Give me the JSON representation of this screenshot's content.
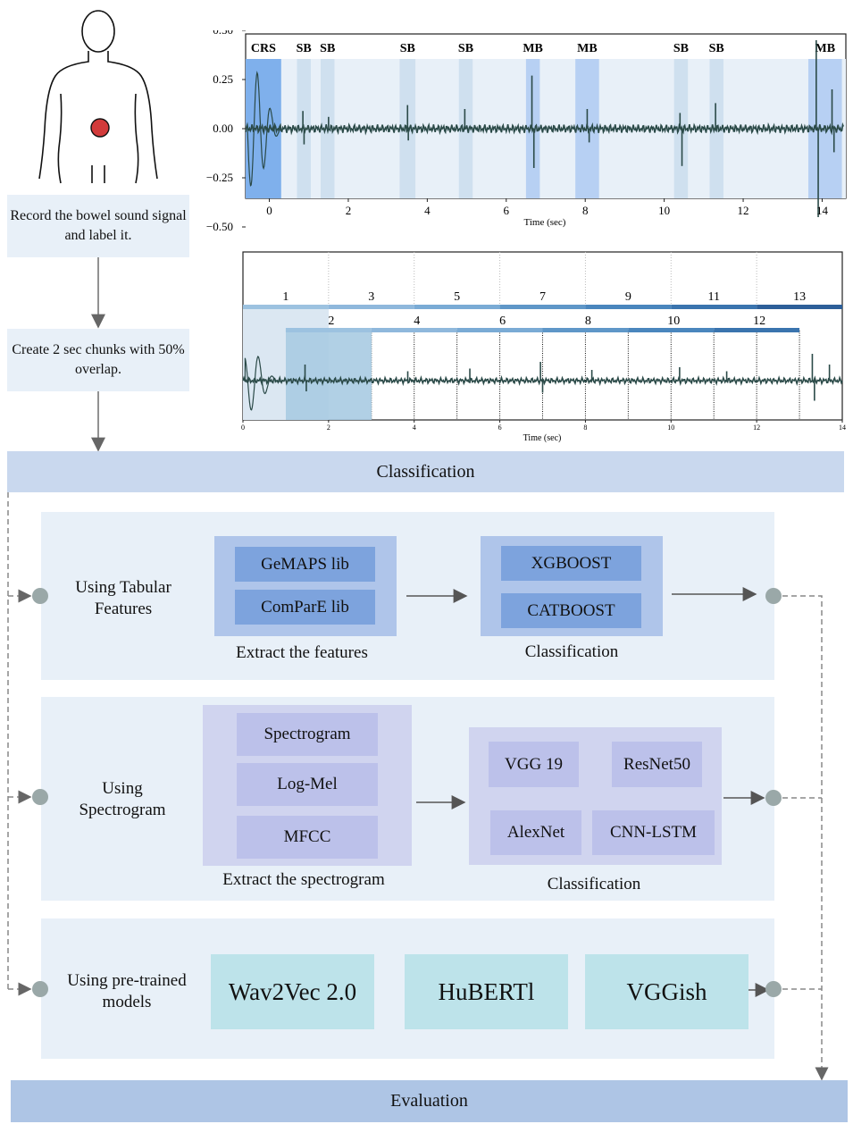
{
  "step_record": "Record the bowel sound signal and label it.",
  "step_chunks": "Create 2 sec chunks with 50% overlap.",
  "classification_header": "Classification",
  "evaluation_footer": "Evaluation",
  "plot1": {
    "xlabel": "Time (sec)",
    "yticks": [
      "0.50",
      "0.25",
      "0.00",
      "−0.25",
      "−0.50"
    ],
    "xticks": [
      "0",
      "2",
      "4",
      "6",
      "8",
      "10",
      "12",
      "14"
    ],
    "events": [
      {
        "label": "CRS",
        "start": -0.6,
        "end": 0.3
      },
      {
        "label": "SB",
        "start": 0.7,
        "end": 1.05
      },
      {
        "label": "SB",
        "start": 1.3,
        "end": 1.65
      },
      {
        "label": "SB",
        "start": 3.3,
        "end": 3.7
      },
      {
        "label": "SB",
        "start": 4.8,
        "end": 5.15
      },
      {
        "label": "MB",
        "start": 6.5,
        "end": 6.85
      },
      {
        "label": "MB",
        "start": 7.75,
        "end": 8.35
      },
      {
        "label": "SB",
        "start": 10.25,
        "end": 10.6
      },
      {
        "label": "SB",
        "start": 11.15,
        "end": 11.5
      },
      {
        "label": "MB",
        "start": 13.65,
        "end": 14.5
      }
    ]
  },
  "plot2": {
    "xlabel": "Time (sec)",
    "xticks": [
      "0",
      "2",
      "4",
      "6",
      "8",
      "10",
      "12",
      "14"
    ],
    "chunks_odd": [
      "1",
      "3",
      "5",
      "7",
      "9",
      "11",
      "13"
    ],
    "chunks_even": [
      "2",
      "4",
      "6",
      "8",
      "10",
      "12"
    ]
  },
  "tabular": {
    "title": "Using Tabular Features",
    "libs": [
      "GeMAPS lib",
      "ComParE lib"
    ],
    "extract_caption": "Extract the features",
    "models": [
      "XGBOOST",
      "CATBOOST"
    ],
    "class_caption": "Classification"
  },
  "spectrogram": {
    "title": "Using Spectrogram",
    "features": [
      "Spectrogram",
      "Log-Mel",
      "MFCC"
    ],
    "extract_caption": "Extract the spectrogram",
    "models": [
      "VGG 19",
      "ResNet50",
      "AlexNet",
      "CNN-LSTM"
    ],
    "class_caption": "Classification"
  },
  "pretrained": {
    "title": "Using pre-trained models",
    "models": [
      "Wav2Vec 2.0",
      "HuBERTl",
      "VGGish"
    ]
  },
  "colors": {
    "light_panel": "#e8f0f8",
    "header_bar": "#c9d8ee",
    "footer_bar": "#aec5e5",
    "blue_group": "#afc5ea",
    "blue_item": "#7da3dd",
    "purple_group": "#d0d4ef",
    "purple_item": "#bcc1ea",
    "teal": "#bde3ea",
    "signal": "#2b4a48",
    "dot": "#9aa8a8"
  }
}
